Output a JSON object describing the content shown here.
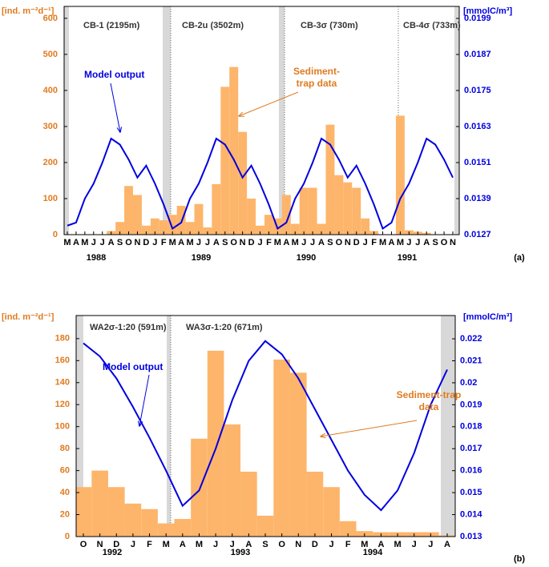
{
  "chart_data": [
    {
      "type": "combo",
      "panel_label": "(a)",
      "ylabel": "[ind. m⁻²d⁻¹]",
      "y2label": "[mmolC/m³]",
      "ylim": [
        0,
        633
      ],
      "yticks": [
        0,
        100,
        200,
        300,
        400,
        500,
        600
      ],
      "y2lim": [
        0.0127,
        0.0203
      ],
      "y2ticks": [
        0.0127,
        0.0139,
        0.0151,
        0.0163,
        0.0175,
        0.0187,
        0.0199
      ],
      "categories": [
        "M",
        "A",
        "M",
        "J",
        "J",
        "A",
        "S",
        "O",
        "N",
        "D",
        "J",
        "F",
        "M",
        "A",
        "M",
        "J",
        "J",
        "A",
        "S",
        "O",
        "N",
        "D",
        "J",
        "F",
        "M",
        "A",
        "M",
        "J",
        "J",
        "A",
        "S",
        "O",
        "N",
        "D",
        "J",
        "F",
        "M",
        "A",
        "M",
        "J",
        "J",
        "A",
        "S",
        "O",
        "N"
      ],
      "year_labels": [
        "1988",
        "1989",
        "1990",
        "1991"
      ],
      "deployment_labels": [
        "CB-1 (2195m)",
        "CB-2u (3502m)",
        "CB-3σ (730m)",
        "CB-4σ (733m)"
      ],
      "series": [
        {
          "name": "Sediment-trap data",
          "kind": "bar",
          "color": "#fdb56b",
          "values": [
            null,
            null,
            null,
            null,
            null,
            10,
            35,
            135,
            110,
            25,
            45,
            40,
            55,
            80,
            35,
            85,
            20,
            140,
            410,
            465,
            285,
            100,
            25,
            55,
            45,
            110,
            30,
            130,
            130,
            30,
            305,
            165,
            145,
            130,
            45,
            10,
            null,
            null,
            330,
            12,
            8,
            5,
            null,
            null,
            null
          ]
        },
        {
          "name": "Model output",
          "kind": "line",
          "axis": "y2",
          "color": "#0000e0",
          "values": [
            0.013,
            0.0131,
            0.0139,
            0.0144,
            0.0151,
            0.0159,
            0.0157,
            0.0152,
            0.0146,
            0.015,
            0.0144,
            0.0137,
            0.0129,
            0.0131,
            0.0139,
            0.0144,
            0.0151,
            0.0159,
            0.0157,
            0.0152,
            0.0146,
            0.015,
            0.0144,
            0.0137,
            0.0129,
            0.0131,
            0.0139,
            0.0144,
            0.0151,
            0.0159,
            0.0157,
            0.0152,
            0.0146,
            0.015,
            0.0144,
            0.0137,
            0.0129,
            0.0131,
            0.0139,
            0.0144,
            0.0151,
            0.0159,
            0.0157,
            0.0152,
            0.0146
          ]
        }
      ]
    },
    {
      "type": "combo",
      "panel_label": "(b)",
      "ylabel": "[ind. m⁻²d⁻¹]",
      "y2label": "[mmolC/m³]",
      "ylim": [
        0,
        201
      ],
      "yticks": [
        0,
        20,
        40,
        60,
        80,
        100,
        120,
        140,
        160,
        180
      ],
      "y2lim": [
        0.013,
        0.02306
      ],
      "y2ticks": [
        0.013,
        0.014,
        0.015,
        0.016,
        0.017,
        0.018,
        0.019,
        0.02,
        0.021,
        0.022
      ],
      "categories": [
        "O",
        "N",
        "D",
        "J",
        "F",
        "M",
        "A",
        "M",
        "J",
        "J",
        "A",
        "S",
        "O",
        "N",
        "D",
        "J",
        "F",
        "M",
        "A",
        "M",
        "J",
        "J",
        "A"
      ],
      "year_labels": [
        "1992",
        "1993",
        "1994"
      ],
      "deployment_labels": [
        "WA2σ-1:20 (591m)",
        "WA3σ-1:20 (671m)"
      ],
      "series": [
        {
          "name": "Sediment-trap data",
          "kind": "bar",
          "color": "#fdb56b",
          "values": [
            45,
            60,
            45,
            30,
            25,
            12,
            16,
            89,
            169,
            102,
            59,
            19,
            161,
            149,
            59,
            45,
            14,
            5,
            4,
            4,
            4,
            4,
            1
          ]
        },
        {
          "name": "Model output",
          "kind": "line",
          "axis": "y2",
          "color": "#0000e0",
          "values": [
            0.0218,
            0.0212,
            0.0202,
            0.0189,
            0.0175,
            0.016,
            0.0144,
            0.0151,
            0.017,
            0.0192,
            0.021,
            0.0219,
            0.0213,
            0.0202,
            0.0188,
            0.0174,
            0.016,
            0.0149,
            0.0142,
            0.0151,
            0.0168,
            0.019,
            0.0206
          ]
        }
      ]
    }
  ]
}
